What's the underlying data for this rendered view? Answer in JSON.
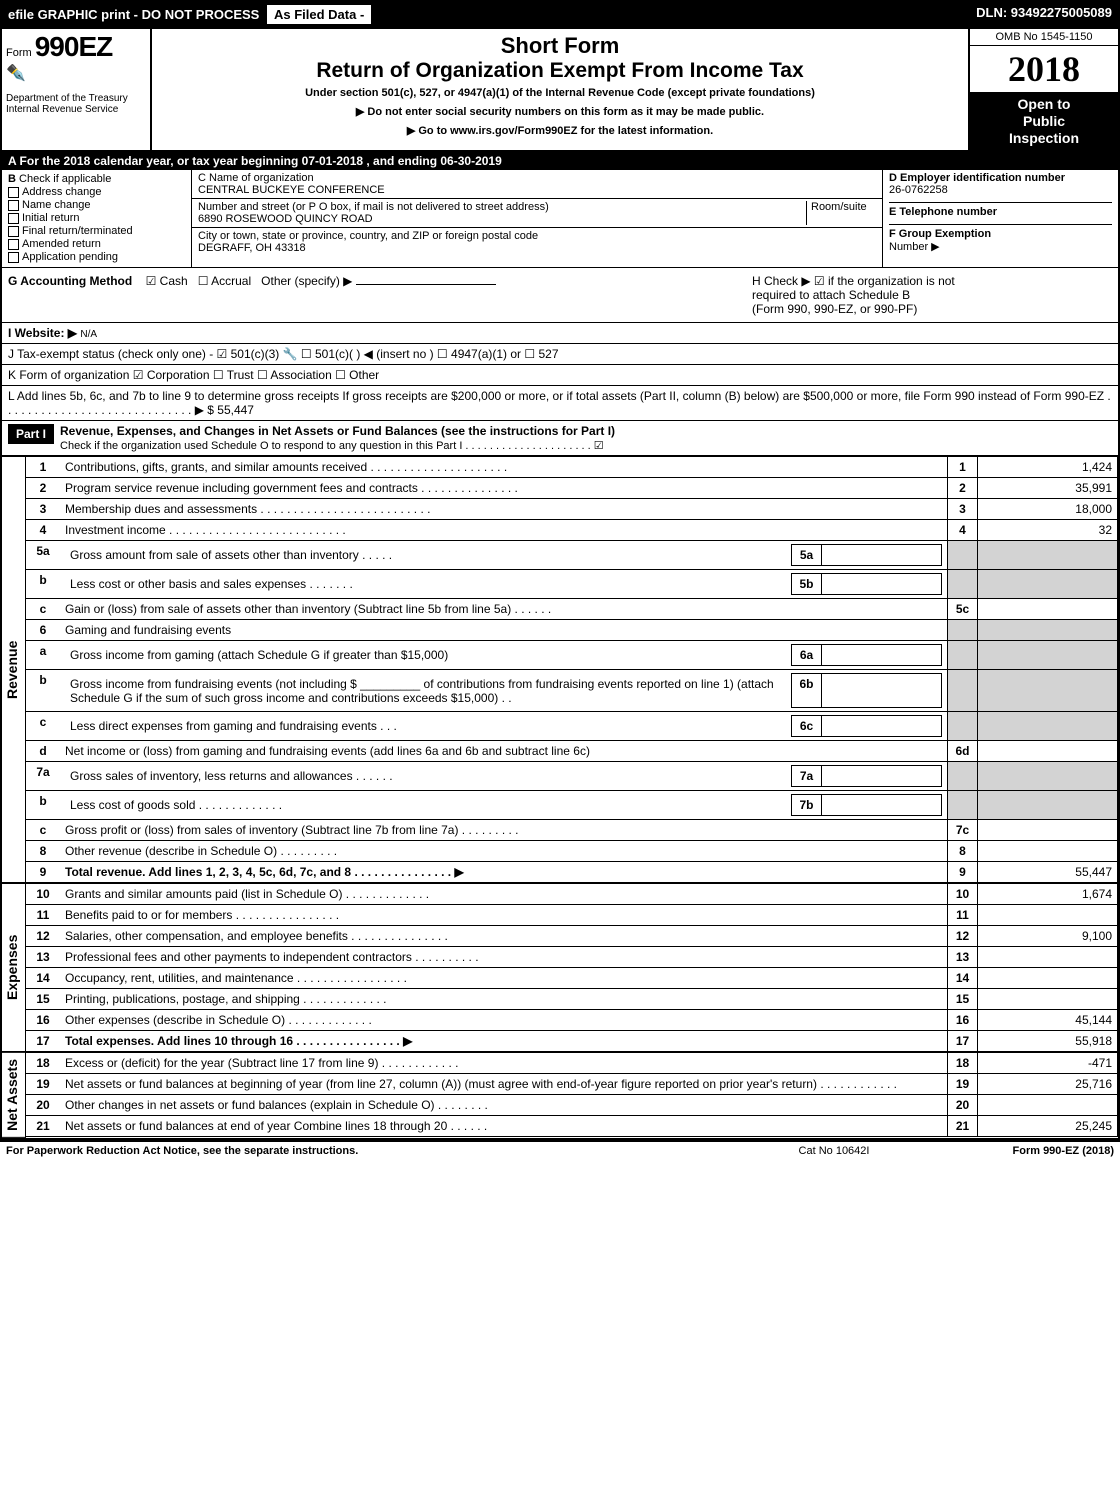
{
  "topbar": {
    "left_text": "efile GRAPHIC print - DO NOT PROCESS",
    "asfiled": "As Filed Data -",
    "dln": "DLN: 93492275005089"
  },
  "header": {
    "form_prefix": "Form",
    "form_no": "990EZ",
    "title1": "Short Form",
    "title2": "Return of Organization Exempt From Income Tax",
    "subtitle": "Under section 501(c), 527, or 4947(a)(1) of the Internal Revenue Code (except private foundations)",
    "instr1": "▶ Do not enter social security numbers on this form as it may be made public.",
    "instr2": "▶ Go to www.irs.gov/Form990EZ for the latest information.",
    "dept": "Department of the Treasury",
    "irs": "Internal Revenue Service",
    "omb": "OMB No  1545-1150",
    "year": "2018",
    "inspect1": "Open to",
    "inspect2": "Public",
    "inspect3": "Inspection"
  },
  "line_a": "A  For the 2018 calendar year, or tax year beginning 07-01-2018             , and ending 06-30-2019",
  "section_b": {
    "label": "B",
    "check_if": "Check if applicable",
    "items": [
      "Address change",
      "Name change",
      "Initial return",
      "Final return/terminated",
      "Amended return",
      "Application pending"
    ]
  },
  "section_c": {
    "name_label": "C Name of organization",
    "name": "CENTRAL BUCKEYE CONFERENCE",
    "addr_label": "Number and street (or P  O  box, if mail is not delivered to street address)",
    "room_label": "Room/suite",
    "addr": "6890 ROSEWOOD QUINCY ROAD",
    "city_label": "City or town, state or province, country, and ZIP or foreign postal code",
    "city": "DEGRAFF, OH  43318"
  },
  "section_d": {
    "ein_label": "D Employer identification number",
    "ein": "26-0762258",
    "phone_label": "E Telephone number",
    "phone": "",
    "group_label": "F Group Exemption",
    "group2": "Number    ▶"
  },
  "section_g": {
    "label": "G Accounting Method",
    "cash": "☑ Cash",
    "accrual": "☐ Accrual",
    "other": "Other (specify) ▶"
  },
  "section_h": {
    "text1": "H    Check ▶   ☑  if the organization is not",
    "text2": "required to attach Schedule B",
    "text3": "(Form 990, 990-EZ, or 990-PF)"
  },
  "website": {
    "label": "I Website: ▶",
    "value": "N/A"
  },
  "taxexempt": "J Tax-exempt status (check only one) -  ☑ 501(c)(3) 🔧 ☐  501(c)(  ) ◀ (insert no ) ☐  4947(a)(1) or  ☐  527",
  "korg": "K Form of organization      ☑ Corporation   ☐ Trust   ☐ Association   ☐ Other",
  "line_l": {
    "text": "L Add lines 5b, 6c, and 7b to line 9 to determine gross receipts  If gross receipts are $200,000 or more, or if total assets (Part II, column (B) below) are $500,000 or more, file Form 990 instead of Form 990-EZ  .  .  .  .  .  .  .  .  .  .  .  .  .  .  .  .  .  .  .  .  .  .  .  .  .  .  .  .  .  ▶ $ 55,447"
  },
  "part1": {
    "label": "Part I",
    "title": "Revenue, Expenses, and Changes in Net Assets or Fund Balances (see the instructions for Part I)",
    "subtitle": "Check if the organization used Schedule O to respond to any question in this Part I .  .  .  .  .  .  .  .  .  .  .  .  .  .  .  .  .  .  .  .  .  ☑"
  },
  "revenue_label": "Revenue",
  "expenses_label": "Expenses",
  "netassets_label": "Net Assets",
  "lines": [
    {
      "n": "1",
      "desc": "Contributions, gifts, grants, and similar amounts received .  .  .  .  .  .  .  .  .  .  .  .  .  .  .  .  .  .  .  .  .",
      "rn": "1",
      "val": "1,424"
    },
    {
      "n": "2",
      "desc": "Program service revenue including government fees and contracts .  .  .  .  .  .  .  .  .  .  .  .  .  .  .",
      "rn": "2",
      "val": "35,991"
    },
    {
      "n": "3",
      "desc": "Membership dues and assessments .  .  .  .  .  .  .  .  .  .  .  .  .  .  .  .  .  .  .  .  .  .  .  .  .  .",
      "rn": "3",
      "val": "18,000"
    },
    {
      "n": "4",
      "desc": "Investment income .  .  .  .  .  .  .  .  .  .  .  .  .  .  .  .  .  .  .  .  .  .  .  .  .  .  .",
      "rn": "4",
      "val": "32"
    },
    {
      "n": "5a",
      "desc": "Gross amount from sale of assets other than inventory .  .  .  .  .",
      "mn": "5a",
      "mv": "",
      "shaded": true
    },
    {
      "n": "b",
      "desc": "Less  cost or other basis and sales expenses .  .  .  .  .  .  .",
      "mn": "5b",
      "mv": "",
      "shaded": true
    },
    {
      "n": "c",
      "desc": "Gain or (loss) from sale of assets other than inventory (Subtract line 5b from line 5a) .  .  .  .  .  .",
      "rn": "5c",
      "val": ""
    },
    {
      "n": "6",
      "desc": "Gaming and fundraising events",
      "shaded": true
    },
    {
      "n": "a",
      "desc": "Gross income from gaming (attach Schedule G if greater than $15,000)",
      "mn": "6a",
      "mv": "",
      "shaded": true
    },
    {
      "n": "b",
      "desc": "Gross income from fundraising events (not including $ _________ of contributions from fundraising events reported on line 1) (attach Schedule G if the sum of such gross income and contributions exceeds $15,000)     .  .",
      "mn": "6b",
      "mv": "",
      "shaded": true
    },
    {
      "n": "c",
      "desc": "Less  direct expenses from gaming and fundraising events      .  .  .",
      "mn": "6c",
      "mv": "",
      "shaded": true
    },
    {
      "n": "d",
      "desc": "Net income or (loss) from gaming and fundraising events (add lines 6a and 6b and subtract line 6c)",
      "rn": "6d",
      "val": ""
    },
    {
      "n": "7a",
      "desc": "Gross sales of inventory, less returns and allowances .  .  .  .  .  .",
      "mn": "7a",
      "mv": "",
      "shaded": true
    },
    {
      "n": "b",
      "desc": "Less  cost of goods sold          .  .  .  .  .  .  .  .  .  .  .  .  .",
      "mn": "7b",
      "mv": "",
      "shaded": true
    },
    {
      "n": "c",
      "desc": "Gross profit or (loss) from sales of inventory (Subtract line 7b from line 7a) .  .  .  .  .  .  .  .  .",
      "rn": "7c",
      "val": ""
    },
    {
      "n": "8",
      "desc": "Other revenue (describe in Schedule O)                     .  .  .  .  .  .  .  .  .",
      "rn": "8",
      "val": ""
    },
    {
      "n": "9",
      "desc": "Total revenue. Add lines 1, 2, 3, 4, 5c, 6d, 7c, and 8  .  .  .  .  .  .  .  .  .  .  .  .  .  .  .    ▶",
      "rn": "9",
      "val": "55,447",
      "bold": true
    }
  ],
  "exp_lines": [
    {
      "n": "10",
      "desc": "Grants and similar amounts paid (list in Schedule O)          .  .  .  .  .  .  .  .  .  .  .  .  .",
      "rn": "10",
      "val": "1,674"
    },
    {
      "n": "11",
      "desc": "Benefits paid to or for members              .  .  .  .  .  .  .  .  .  .  .  .  .  .  .  .",
      "rn": "11",
      "val": ""
    },
    {
      "n": "12",
      "desc": "Salaries, other compensation, and employee benefits .   .   .   .   .   .   .   .   .   .   .   .   .   .   .",
      "rn": "12",
      "val": "9,100"
    },
    {
      "n": "13",
      "desc": "Professional fees and other payments to independent contractors  .   .   .   .   .   .   .   .   .   .",
      "rn": "13",
      "val": ""
    },
    {
      "n": "14",
      "desc": "Occupancy, rent, utilities, and maintenance .   .   .   .   .   .   .   .   .   .   .   .   .   .   .   .   .",
      "rn": "14",
      "val": ""
    },
    {
      "n": "15",
      "desc": "Printing, publications, postage, and shipping             .  .  .  .  .  .  .  .  .  .  .  .  .",
      "rn": "15",
      "val": ""
    },
    {
      "n": "16",
      "desc": "Other expenses (describe in Schedule O)               .   .   .   .   .   .   .   .   .   .   .   .   .",
      "rn": "16",
      "val": "45,144"
    },
    {
      "n": "17",
      "desc": "Total expenses. Add lines 10 through 16       .  .  .  .  .  .  .  .  .  .  .  .  .  .  .  .    ▶",
      "rn": "17",
      "val": "55,918",
      "bold": true
    }
  ],
  "na_lines": [
    {
      "n": "18",
      "desc": "Excess or (deficit) for the year (Subtract line 17 from line 9)       .  .  .  .  .  .  .  .  .  .  .  .",
      "rn": "18",
      "val": "-471"
    },
    {
      "n": "19",
      "desc": "Net assets or fund balances at beginning of year (from line 27, column (A)) (must agree with end-of-year figure reported on prior year's return)              .  .  .  .  .  .  .  .  .  .  .  .",
      "rn": "19",
      "val": "25,716"
    },
    {
      "n": "20",
      "desc": "Other changes in net assets or fund balances (explain in Schedule O)      .  .  .  .  .  .  .  .",
      "rn": "20",
      "val": ""
    },
    {
      "n": "21",
      "desc": "Net assets or fund balances at end of year  Combine lines 18 through 20          .  .  .  .  .  .",
      "rn": "21",
      "val": "25,245"
    }
  ],
  "footer": {
    "left": "For Paperwork Reduction Act Notice, see the separate instructions.",
    "mid": "Cat  No  10642I",
    "right": "Form 990-EZ (2018)"
  }
}
